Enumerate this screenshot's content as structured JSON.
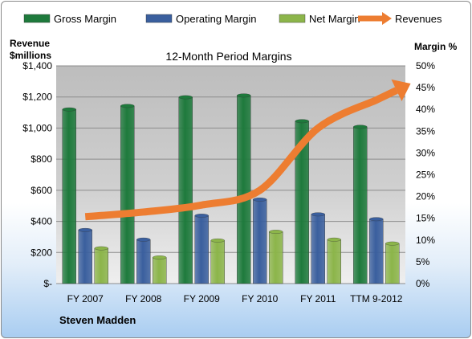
{
  "chart_data": {
    "type": "bar",
    "title": "12-Month Period Margins",
    "categories": [
      "FY 2007",
      "FY 2008",
      "FY 2009",
      "FY 2010",
      "FY 2011",
      "TTM 9-2012"
    ],
    "series": [
      {
        "name": "Gross Margin",
        "axis": "right",
        "color": "#1e7a3c",
        "values": [
          40.0,
          40.8,
          42.8,
          43.2,
          37.3,
          36.0
        ]
      },
      {
        "name": "Operating Margin",
        "axis": "right",
        "color": "#3a5f9e",
        "values": [
          12.3,
          10.1,
          15.6,
          19.3,
          15.9,
          14.8
        ]
      },
      {
        "name": "Net Margin",
        "axis": "right",
        "color": "#8cb54a",
        "values": [
          8.1,
          6.0,
          9.9,
          11.9,
          10.1,
          9.2
        ]
      },
      {
        "name": "Revenues",
        "type": "line",
        "axis": "left",
        "color": "#ed7d31",
        "values": [
          430,
          460,
          505,
          600,
          1000,
          1180
        ]
      }
    ],
    "y_left": {
      "label_line1": "Revenue",
      "label_line2": "$millions",
      "range": [
        0,
        1400
      ],
      "ticks": [
        "$-",
        "$200",
        "$400",
        "$600",
        "$800",
        "$1,000",
        "$1,200",
        "$1,400"
      ]
    },
    "y_right": {
      "label": "Margin %",
      "range": [
        0,
        50
      ],
      "ticks": [
        "0%",
        "5%",
        "10%",
        "15%",
        "20%",
        "25%",
        "30%",
        "35%",
        "40%",
        "45%",
        "50%"
      ]
    },
    "legend_position": "top",
    "grid": true
  },
  "footer": {
    "company": "Steven Madden"
  }
}
